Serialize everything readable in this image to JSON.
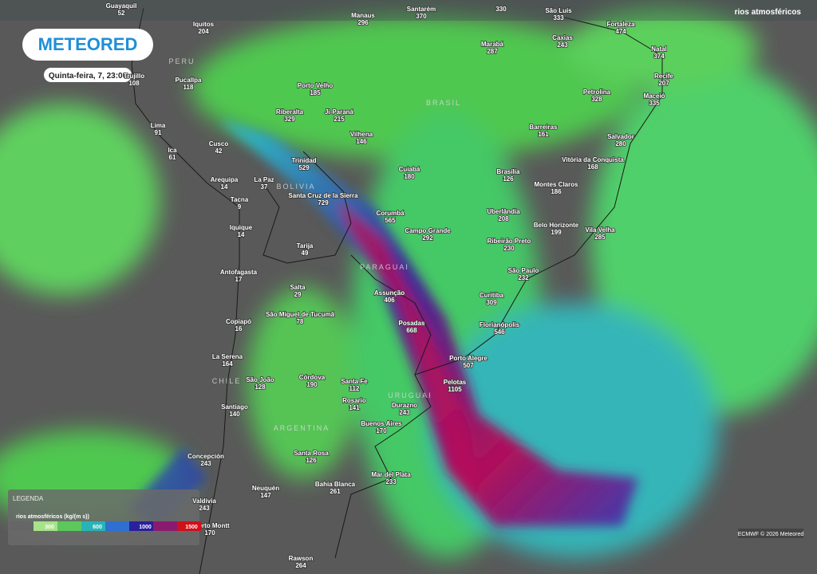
{
  "header": {
    "brand": "METEORED",
    "datetime": "Quinta-feira, 7, 23:00",
    "layer_title": "rios atmosféricos"
  },
  "countries": [
    "PERU",
    "BRASIL",
    "BOLIVIA",
    "PARAGUAI",
    "URUGUAI",
    "CHILE",
    "ARGENTINA"
  ],
  "cities": [
    {
      "name": "Guayaquil",
      "value": "52"
    },
    {
      "name": "Manaus",
      "value": "296"
    },
    {
      "name": "Santarém",
      "value": "370"
    },
    {
      "value": "330"
    },
    {
      "name": "São Luís",
      "value": "333"
    },
    {
      "name": "Fortaleza",
      "value": "474"
    },
    {
      "name": "Iquitos",
      "value": "204"
    },
    {
      "name": "Marabá",
      "value": "287"
    },
    {
      "name": "Caxias",
      "value": "243"
    },
    {
      "name": "Natal",
      "value": "374"
    },
    {
      "name": "Recife",
      "value": "207"
    },
    {
      "name": "Maceió",
      "value": "335"
    },
    {
      "name": "Pucallpa",
      "value": "118"
    },
    {
      "name": "Porto Velho",
      "value": "185"
    },
    {
      "name": "Petrolina",
      "value": "328"
    },
    {
      "name": "Trujillo",
      "value": "108"
    },
    {
      "name": "Lima",
      "value": "91"
    },
    {
      "name": "Ica",
      "value": "61"
    },
    {
      "name": "Cusco",
      "value": "42"
    },
    {
      "name": "Riberalta",
      "value": "329"
    },
    {
      "name": "Ji-Paraná",
      "value": "215"
    },
    {
      "name": "Vilhena",
      "value": "146"
    },
    {
      "name": "Barreiras",
      "value": "161"
    },
    {
      "name": "Salvador",
      "value": "280"
    },
    {
      "name": "Trinidad",
      "value": "529"
    },
    {
      "name": "Cuiabá",
      "value": "180"
    },
    {
      "name": "Brasília",
      "value": "126"
    },
    {
      "name": "Vitória da Conquista",
      "value": "168"
    },
    {
      "name": "Arequipa",
      "value": "14"
    },
    {
      "name": "La Paz",
      "value": "37"
    },
    {
      "name": "Montes Claros",
      "value": "186"
    },
    {
      "name": "Santa Cruz de la Sierra",
      "value": "729"
    },
    {
      "name": "Tacna",
      "value": "9"
    },
    {
      "name": "Corumbá",
      "value": "565"
    },
    {
      "name": "Uberlândia",
      "value": "208"
    },
    {
      "name": "Belo Horizonte",
      "value": "199"
    },
    {
      "name": "Iquique",
      "value": "14"
    },
    {
      "name": "Campo Grande",
      "value": "292"
    },
    {
      "name": "Vila Velha",
      "value": "285"
    },
    {
      "name": "Ribeirão Preto",
      "value": "230"
    },
    {
      "name": "Tarija",
      "value": "49"
    },
    {
      "name": "Antofagasta",
      "value": "17"
    },
    {
      "name": "São Paulo",
      "value": "232"
    },
    {
      "name": "Salta",
      "value": "29"
    },
    {
      "name": "Assunção",
      "value": "406"
    },
    {
      "name": "Curitiba",
      "value": "309"
    },
    {
      "name": "São Miguel de Tucumã",
      "value": "78"
    },
    {
      "name": "Posadas",
      "value": "668"
    },
    {
      "name": "Florianópolis",
      "value": "546"
    },
    {
      "name": "Copiapó",
      "value": "16"
    },
    {
      "name": "Porto Alegre",
      "value": "507"
    },
    {
      "name": "La Serena",
      "value": "164"
    },
    {
      "name": "São João",
      "value": "128"
    },
    {
      "name": "Córdova",
      "value": "190"
    },
    {
      "name": "Santa Fe",
      "value": "112"
    },
    {
      "name": "Pelotas",
      "value": "1105"
    },
    {
      "name": "Rosario",
      "value": "141"
    },
    {
      "name": "Durazno",
      "value": "243"
    },
    {
      "name": "Santiago",
      "value": "140"
    },
    {
      "name": "Buenos Aires",
      "value": "170"
    },
    {
      "name": "Santa Rosa",
      "value": "126"
    },
    {
      "name": "Concepción",
      "value": "243"
    },
    {
      "name": "Mar del Plata",
      "value": "233"
    },
    {
      "name": "Bahía Blanca",
      "value": "261"
    },
    {
      "name": "Neuquén",
      "value": "147"
    },
    {
      "name": "Valdivia",
      "value": "243"
    },
    {
      "name": "Puerto Montt",
      "value": "170"
    },
    {
      "name": "Rawson",
      "value": "264"
    }
  ],
  "legend": {
    "title": "LEGENDA",
    "variable": "rios atmosféricos (kg/(m s))",
    "ticks": [
      "300",
      "600",
      "1000",
      "1500"
    ]
  },
  "credit": "ECMWF © 2026 Meteored"
}
